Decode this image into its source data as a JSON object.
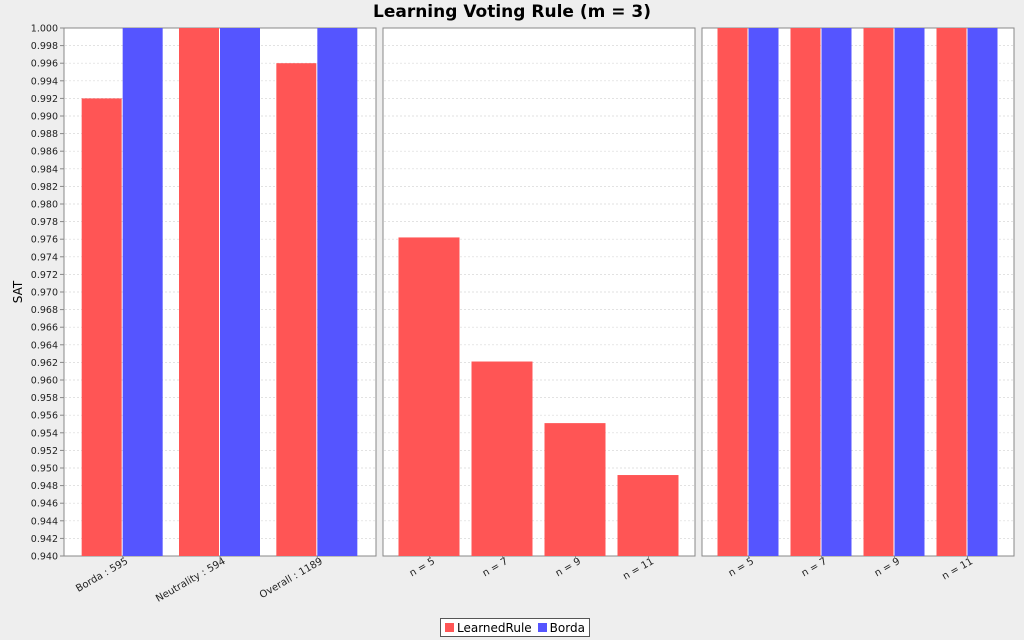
{
  "chart_data": {
    "type": "bar",
    "title": "Learning Voting Rule (m = 3)",
    "ylabel": "SAT",
    "ylim": [
      0.94,
      1.0
    ],
    "ytick_step": 0.002,
    "yticks_format_decimals": 3,
    "grid": true,
    "legend_placement": "bottom-center",
    "series_colors": {
      "LearnedRule": "#ff5555",
      "Borda": "#5555ff"
    },
    "legend": [
      "LearnedRule",
      "Borda"
    ],
    "panels": [
      {
        "categories": [
          "Borda : 595",
          "Neutrality : 594",
          "Overall : 1189"
        ],
        "series": [
          {
            "name": "LearnedRule",
            "values": [
              0.992,
              1.0,
              0.996
            ]
          },
          {
            "name": "Borda",
            "values": [
              1.0,
              1.0,
              1.0
            ]
          }
        ]
      },
      {
        "categories": [
          "n = 5",
          "n = 7",
          "n = 9",
          "n = 11"
        ],
        "series": [
          {
            "name": "LearnedRule",
            "values": [
              0.9762,
              0.9621,
              0.9551,
              0.9492
            ]
          }
        ]
      },
      {
        "categories": [
          "n = 5",
          "n = 7",
          "n = 9",
          "n = 11"
        ],
        "series": [
          {
            "name": "LearnedRule",
            "values": [
              1.0,
              1.0,
              1.0,
              1.0
            ]
          },
          {
            "name": "Borda",
            "values": [
              1.0,
              1.0,
              1.0,
              1.0
            ]
          }
        ]
      }
    ]
  }
}
